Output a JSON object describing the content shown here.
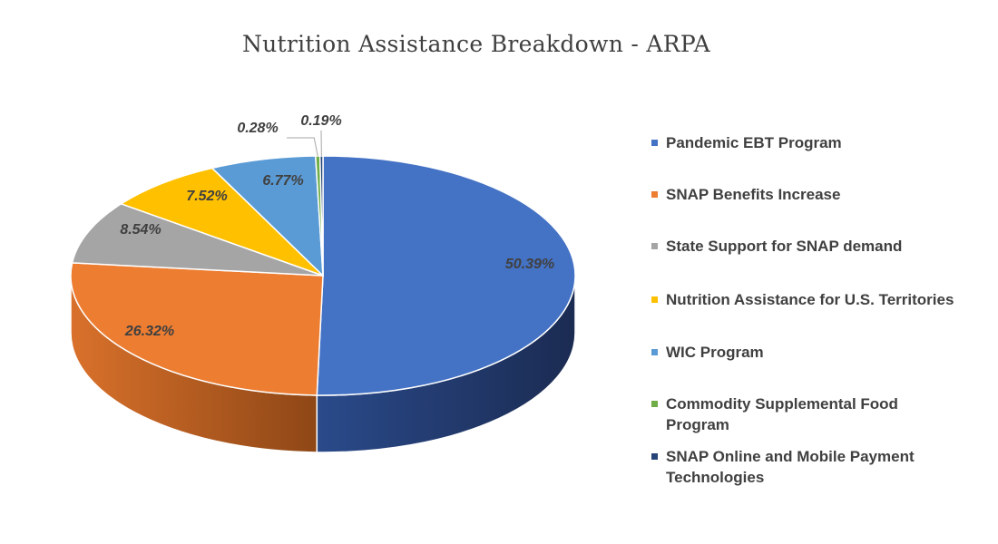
{
  "chart_data": {
    "type": "pie",
    "title": "Nutrition Assistance Breakdown - ARPA",
    "legend_position": "right",
    "series": [
      {
        "name": "Pandemic EBT Program",
        "value": 50.39,
        "label": "50.39%",
        "color": "#4472C4",
        "side_color": "#1F3361"
      },
      {
        "name": "SNAP Benefits Increase",
        "value": 26.32,
        "label": "26.32%",
        "color": "#ED7D31",
        "side_color": "#C0591C"
      },
      {
        "name": "State Support for SNAP demand",
        "value": 8.54,
        "label": "8.54%",
        "color": "#A5A5A5",
        "side_color": "#7F7F7F"
      },
      {
        "name": "Nutrition Assistance for U.S. Territories",
        "value": 7.52,
        "label": "7.52%",
        "color": "#FFC000",
        "side_color": "#BF9000"
      },
      {
        "name": "WIC Program",
        "value": 6.77,
        "label": "6.77%",
        "color": "#5B9BD5",
        "side_color": "#2E75B6"
      },
      {
        "name": "Commodity Supplemental Food Program",
        "value": 0.28,
        "label": "0.28%",
        "color": "#70AD47",
        "side_color": "#507E32"
      },
      {
        "name": "SNAP Online and Mobile Payment Technologies",
        "value": 0.19,
        "label": "0.19%",
        "color": "#264478",
        "side_color": "#172A4A"
      }
    ]
  }
}
